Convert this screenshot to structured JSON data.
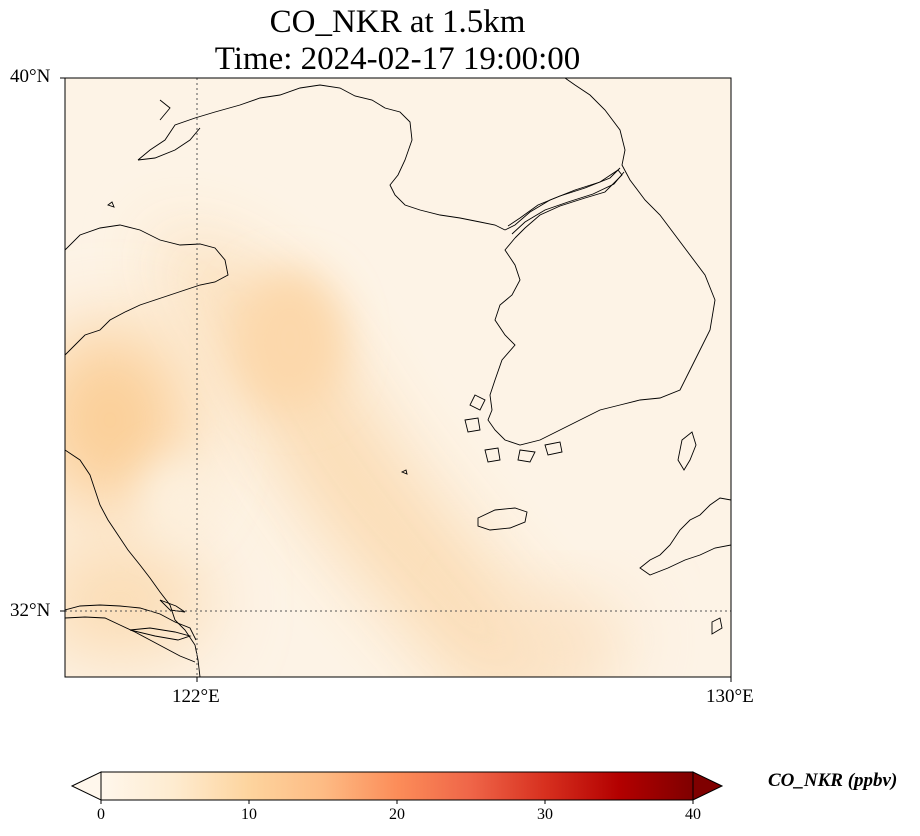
{
  "title": {
    "line1": "CO_NKR at 1.5km",
    "line2": "Time: 2024-02-17 19:00:00"
  },
  "map": {
    "extent": {
      "lon_min": 120,
      "lon_max": 130,
      "lat_min": 31,
      "lat_max": 40
    },
    "lat_ticks": [
      {
        "value": 40,
        "label": "40°N"
      },
      {
        "value": 32,
        "label": "32°N"
      }
    ],
    "lon_ticks": [
      {
        "value": 122,
        "label": "122°E"
      },
      {
        "value": 130,
        "label": "130°E"
      }
    ],
    "gridlines": "dotted"
  },
  "colorbar": {
    "label": "CO_NKR (ppbv)",
    "min": 0,
    "max": 40,
    "colormap": "OrRd",
    "extend": "both",
    "ticks": [
      "0",
      "10",
      "20",
      "30",
      "40"
    ]
  },
  "colors": {
    "background_field": "#fdf3e6",
    "plume": "#fbd6a6",
    "coastline": "#000000"
  }
}
